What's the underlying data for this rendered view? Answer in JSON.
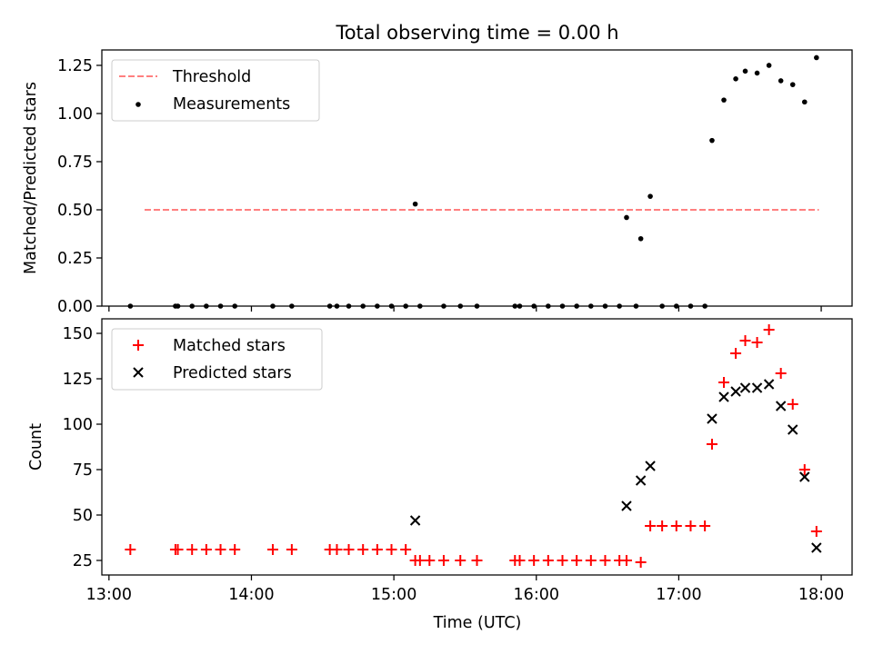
{
  "chart_data": [
    {
      "type": "scatter",
      "title": "Total observing time = 0.00 h",
      "xlabel": "",
      "ylabel": "Matched/Predicted stars",
      "xlim": [
        "12:57",
        "18:13"
      ],
      "ylim": [
        0,
        1.33
      ],
      "yticks": [
        "0.00",
        "0.25",
        "0.50",
        "0.75",
        "1.00",
        "1.25"
      ],
      "x_tick_labels_shown": false,
      "grid": false,
      "legend": {
        "placement": "top-left",
        "entries": [
          "Threshold",
          "Measurements"
        ]
      },
      "threshold": {
        "name": "Threshold",
        "y": 0.5,
        "x_start": "13:15",
        "x_end": "17:59",
        "color": "#ff7f7f",
        "style": "dashed"
      },
      "series": [
        {
          "name": "Measurements",
          "color": "#000000",
          "marker": "dot",
          "x": [
            "13:09",
            "13:28",
            "13:29",
            "13:35",
            "13:41",
            "13:47",
            "13:53",
            "14:09",
            "14:17",
            "14:33",
            "14:36",
            "14:41",
            "14:47",
            "14:53",
            "14:59",
            "15:05",
            "15:11",
            "15:09",
            "15:21",
            "15:28",
            "15:35",
            "15:51",
            "15:53",
            "15:59",
            "16:05",
            "16:11",
            "16:17",
            "16:23",
            "16:29",
            "16:35",
            "16:42",
            "16:38",
            "16:44",
            "16:48",
            "16:53",
            "16:59",
            "17:05",
            "17:11",
            "17:14",
            "17:19",
            "17:24",
            "17:28",
            "17:33",
            "17:38",
            "17:43",
            "17:48",
            "17:53",
            "17:58"
          ],
          "y": [
            0,
            0,
            0,
            0,
            0,
            0,
            0,
            0,
            0,
            0,
            0,
            0,
            0,
            0,
            0,
            0,
            0,
            0.53,
            0,
            0,
            0,
            0,
            0,
            0,
            0,
            0,
            0,
            0,
            0,
            0,
            0,
            0.46,
            0.35,
            0.57,
            0,
            0,
            0,
            0,
            0.86,
            1.07,
            1.18,
            1.22,
            1.21,
            1.25,
            1.17,
            1.15,
            1.06,
            1.29
          ]
        }
      ]
    },
    {
      "type": "scatter",
      "title": "",
      "xlabel": "Time (UTC)",
      "ylabel": "Count",
      "xlim": [
        "12:57",
        "18:13"
      ],
      "ylim": [
        17,
        158
      ],
      "xticks": [
        "13:00",
        "14:00",
        "15:00",
        "16:00",
        "17:00",
        "18:00"
      ],
      "yticks": [
        "25",
        "50",
        "75",
        "100",
        "125",
        "150"
      ],
      "grid": false,
      "legend": {
        "placement": "top-left",
        "entries": [
          "Matched stars",
          "Predicted stars"
        ]
      },
      "series": [
        {
          "name": "Matched stars",
          "color": "#ff0000",
          "marker": "plus",
          "x": [
            "13:09",
            "13:28",
            "13:29",
            "13:35",
            "13:41",
            "13:47",
            "13:53",
            "14:09",
            "14:17",
            "14:33",
            "14:36",
            "14:41",
            "14:47",
            "14:53",
            "14:59",
            "15:05",
            "15:11",
            "15:09",
            "15:15",
            "15:21",
            "15:28",
            "15:35",
            "15:51",
            "15:53",
            "15:59",
            "16:05",
            "16:11",
            "16:17",
            "16:23",
            "16:29",
            "16:35",
            "16:38",
            "16:44",
            "16:48",
            "16:53",
            "16:59",
            "17:05",
            "17:11",
            "17:14",
            "17:19",
            "17:24",
            "17:28",
            "17:33",
            "17:38",
            "17:43",
            "17:48",
            "17:53",
            "17:58"
          ],
          "y": [
            31,
            31,
            31,
            31,
            31,
            31,
            31,
            31,
            31,
            31,
            31,
            31,
            31,
            31,
            31,
            31,
            25,
            25,
            25,
            25,
            25,
            25,
            25,
            25,
            25,
            25,
            25,
            25,
            25,
            25,
            25,
            25,
            24,
            44,
            44,
            44,
            44,
            44,
            89,
            123,
            139,
            146,
            145,
            152,
            128,
            111,
            75,
            41
          ]
        },
        {
          "name": "Predicted stars",
          "color": "#000000",
          "marker": "x",
          "x": [
            "15:09",
            "16:38",
            "16:44",
            "16:48",
            "17:14",
            "17:19",
            "17:24",
            "17:28",
            "17:33",
            "17:38",
            "17:43",
            "17:48",
            "17:53",
            "17:58"
          ],
          "y": [
            47,
            55,
            69,
            77,
            103,
            115,
            118,
            120,
            120,
            122,
            110,
            97,
            71,
            32
          ]
        }
      ]
    }
  ]
}
